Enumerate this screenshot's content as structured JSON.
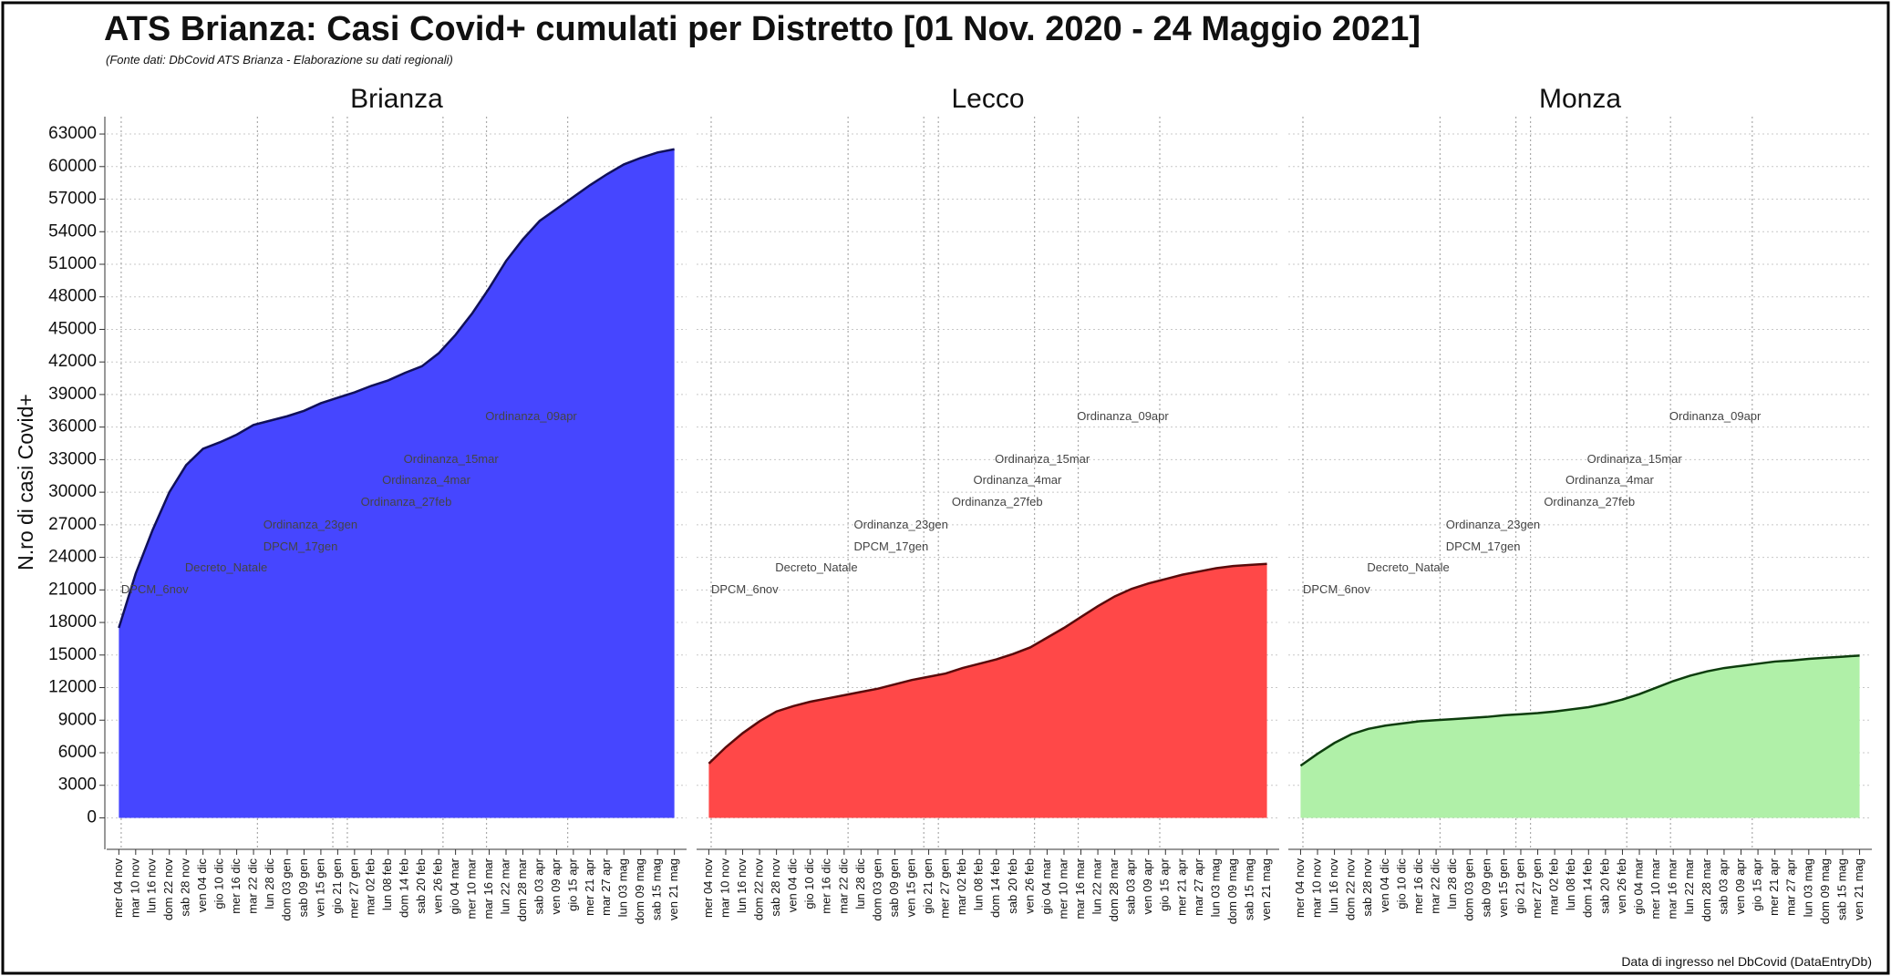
{
  "chart_data": {
    "type": "area",
    "title": "ATS Brianza: Casi Covid+ cumulati per Distretto [01 Nov. 2020 - 24 Maggio 2021]",
    "subtitle": "(Fonte dati: DbCovid ATS Brianza - Elaborazione su dati regionali)",
    "ylabel": "N.ro di casi Covid+",
    "footnote": "Data di ingresso nel DbCovid (DataEntryDb)",
    "categories": [
      "mer 04 nov",
      "mar 10 nov",
      "lun 16 nov",
      "dom 22 nov",
      "sab 28 nov",
      "ven 04 dic",
      "gio 10 dic",
      "mer 16 dic",
      "mar 22 dic",
      "lun 28 dic",
      "dom 03 gen",
      "sab 09 gen",
      "ven 15 gen",
      "gio 21 gen",
      "mer 27 gen",
      "mar 02 feb",
      "lun 08 feb",
      "dom 14 feb",
      "sab 20 feb",
      "ven 26 feb",
      "gio 04 mar",
      "mer 10 mar",
      "mar 16 mar",
      "lun 22 mar",
      "dom 28 mar",
      "sab 03 apr",
      "ven 09 apr",
      "gio 15 apr",
      "mer 21 apr",
      "mar 27 apr",
      "lun 03 mag",
      "dom 09 mag",
      "sab 15 mag",
      "ven 21 mag"
    ],
    "ylim": [
      -2900,
      64600
    ],
    "yticks": [
      0,
      3000,
      6000,
      9000,
      12000,
      15000,
      18000,
      21000,
      24000,
      27000,
      30000,
      33000,
      36000,
      39000,
      42000,
      45000,
      48000,
      51000,
      54000,
      57000,
      60000,
      63000
    ],
    "grid": true,
    "annotations": [
      "DPCM_6nov",
      "Decreto_Natale",
      "DPCM_17gen",
      "Ordinanza_23gen",
      "Ordinanza_27feb",
      "Ordinanza_4mar",
      "Ordinanza_15mar",
      "Ordinanza_09apr"
    ],
    "series": [
      {
        "name": "Brianza",
        "color": "#4646ff",
        "values": [
          17500,
          22500,
          26500,
          30000,
          32500,
          34000,
          34600,
          35300,
          36200,
          36600,
          37000,
          37500,
          38200,
          38700,
          39200,
          39800,
          40300,
          41000,
          41600,
          42800,
          44500,
          46500,
          48800,
          51300,
          53300,
          55000,
          56100,
          57200,
          58300,
          59300,
          60200,
          60800,
          61300,
          61600
        ]
      },
      {
        "name": "Lecco",
        "color": "#ff4848",
        "values": [
          5000,
          6500,
          7800,
          8900,
          9800,
          10300,
          10700,
          11000,
          11300,
          11600,
          11900,
          12300,
          12700,
          13000,
          13300,
          13800,
          14200,
          14600,
          15100,
          15700,
          16600,
          17500,
          18500,
          19500,
          20400,
          21100,
          21600,
          22000,
          22400,
          22700,
          23000,
          23200,
          23300,
          23400
        ]
      },
      {
        "name": "Monza",
        "color": "#b0f0a8",
        "values": [
          4800,
          5900,
          6900,
          7700,
          8200,
          8500,
          8700,
          8900,
          9000,
          9100,
          9200,
          9300,
          9450,
          9550,
          9650,
          9800,
          10000,
          10200,
          10500,
          10900,
          11400,
          12000,
          12600,
          13100,
          13500,
          13800,
          14000,
          14200,
          14400,
          14500,
          14650,
          14750,
          14850,
          14950
        ]
      }
    ]
  }
}
